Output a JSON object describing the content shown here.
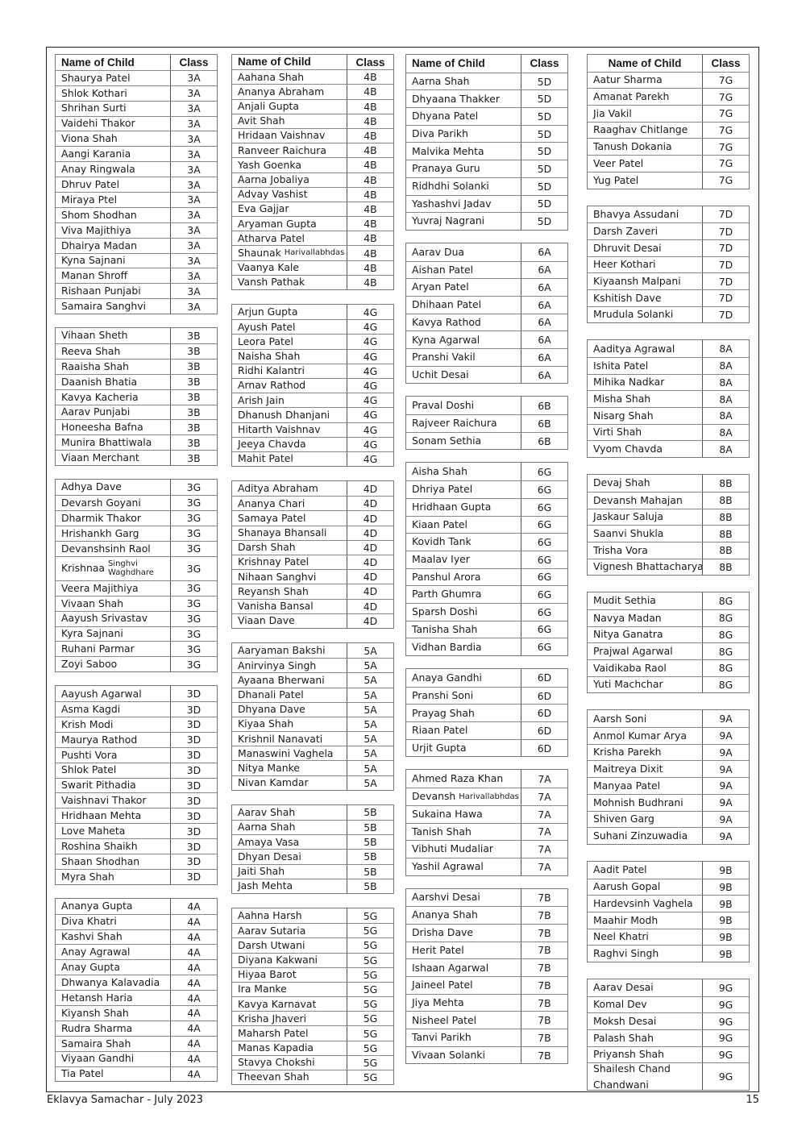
{
  "header": {
    "name": "Name of Child",
    "class": "Class"
  },
  "columns": [
    {
      "groups": [
        {
          "class": "3A",
          "names": [
            "Shaurya Patel",
            "Shlok Kothari",
            "Shrihan Surti",
            "Vaidehi Thakor",
            "Viona Shah",
            "Aangi Karania",
            "Anay Ringwala",
            "Dhruv Patel",
            "Miraya Ptel",
            "Shom Shodhan",
            "Viva Majithiya",
            "Dhairya Madan",
            "Kyna Sajnani",
            "Manan Shroff",
            "Rishaan Punjabi",
            "Samaira Sanghvi"
          ]
        },
        {
          "class": "3B",
          "names": [
            "Vihaan Sheth",
            "Reeva Shah",
            "Raaisha Shah",
            "Daanish Bhatia",
            "Kavya Kacheria",
            "Aarav Punjabi",
            "Honeesha Bafna",
            "Munira Bhattiwala",
            "Viaan Merchant"
          ]
        },
        {
          "class": "3G",
          "names": [
            "Adhya Dave",
            "Devarsh Goyani",
            "Dharmik Thakor",
            "Hrishankh Garg",
            "Devanshsinh Raol",
            "Krishnaa|Singhvi Waghdhare",
            "Veera Majithiya",
            "Vivaan Shah",
            "Aayush Srivastav",
            "Kyra Sajnani",
            "Ruhani Parmar",
            "Zoyi Saboo"
          ]
        },
        {
          "class": "3D",
          "names": [
            "Aayush Agarwal",
            "Asma Kagdi",
            "Krish Modi",
            "Maurya Rathod",
            "Pushti Vora",
            "Shlok Patel",
            "Swarit Pithadia",
            "Vaishnavi Thakor",
            "Hridhaan Mehta",
            "Love Maheta",
            "Roshina Shaikh",
            "Shaan Shodhan",
            "Myra Shah"
          ]
        },
        {
          "class": "4A",
          "names": [
            "Ananya Gupta",
            "Diva Khatri",
            "Kashvi Shah",
            "Anay Agrawal",
            "Anay Gupta",
            "Dhwanya Kalavadia",
            "Hetansh Haria",
            "Kiyansh Shah",
            "Rudra Sharma",
            "Samaira Shah",
            "Viyaan Gandhi",
            "Tia Patel"
          ]
        }
      ]
    },
    {
      "groups": [
        {
          "class": "4B",
          "names": [
            "Aahana Shah",
            "Ananya Abraham",
            "Anjali Gupta",
            "Avit Shah",
            "Hridaan Vaishnav",
            "Ranveer Raichura",
            "Yash Goenka",
            "Aarna Jobaliya",
            "Advay Vashist",
            "Eva Gajjar",
            "Aryaman Gupta",
            "Atharva Patel",
            "Shaunak|Harivallabhdas",
            "Vaanya Kale",
            "Vansh Pathak"
          ]
        },
        {
          "class": "4G",
          "names": [
            "Arjun Gupta",
            "Ayush Patel",
            "Leora Patel",
            "Naisha Shah",
            "Ridhi Kalantri",
            "Arnav Rathod",
            "Arish Jain",
            "Dhanush Dhanjani",
            "Hitarth Vaishnav",
            "Jeeya Chavda",
            "Mahit Patel"
          ]
        },
        {
          "class": "4D",
          "names": [
            "Aditya Abraham",
            "Ananya Chari",
            "Samaya Patel",
            "Shanaya Bhansali",
            "Darsh Shah",
            "Krishnay Patel",
            "Nihaan Sanghvi",
            "Reyansh Shah",
            "Vanisha Bansal",
            "Viaan Dave"
          ]
        },
        {
          "class": "5A",
          "names": [
            "Aaryaman Bakshi",
            "Anirvinya Singh",
            "Ayaana Bherwani",
            "Dhanali Patel",
            "Dhyana Dave",
            "Kiyaa Shah",
            "Krishnil Nanavati",
            "Manaswini Vaghela",
            "Nitya Manke",
            "Nivan Kamdar"
          ]
        },
        {
          "class": "5B",
          "names": [
            "Aarav Shah",
            "Aarna Shah",
            "Amaya Vasa",
            "Dhyan Desai",
            "Jaiti Shah",
            "Jash Mehta"
          ]
        },
        {
          "class": "5G",
          "names": [
            "Aahna Harsh",
            "Aarav Sutaria",
            "Darsh Utwani",
            "Diyana Kakwani",
            "Hiyaa Barot",
            "Ira Manke",
            "Kavya Karnavat",
            "Krisha Jhaveri",
            "Maharsh Patel",
            "Manas Kapadia",
            "Stavya Chokshi",
            "Theevan Shah"
          ]
        }
      ]
    },
    {
      "groups": [
        {
          "class": "5D",
          "names": [
            "Aarna Shah",
            "Dhyaana Thakker",
            "Dhyana Patel",
            "Diva Parikh",
            "Malvika Mehta",
            "Pranaya Guru",
            "Ridhdhi Solanki",
            "Yashashvi Jadav",
            "Yuvraj Nagrani"
          ]
        },
        {
          "class": "6A",
          "names": [
            "Aarav Dua",
            "Aishan Patel",
            "Aryan Patel",
            "Dhihaan Patel",
            "Kavya Rathod",
            "Kyna Agarwal",
            "Pranshi Vakil",
            "Uchit Desai"
          ]
        },
        {
          "class": "6B",
          "names": [
            "Praval Doshi",
            "Rajveer Raichura",
            "Sonam Sethia"
          ]
        },
        {
          "class": "6G",
          "names": [
            "Aisha Shah",
            "Dhriya Patel",
            "Hridhaan Gupta",
            "Kiaan Patel",
            "Kovidh Tank",
            "Maalav Iyer",
            "Panshul Arora",
            "Parth Ghumra",
            "Sparsh Doshi",
            "Tanisha Shah",
            "Vidhan Bardia"
          ]
        },
        {
          "class": "6D",
          "names": [
            "Anaya Gandhi",
            "Pranshi Soni",
            "Prayag Shah",
            "Riaan Patel",
            "Urjit Gupta"
          ]
        },
        {
          "class": "7A",
          "names": [
            "Ahmed Raza Khan",
            "Devansh|Harivallabhdas",
            "Sukaina Hawa",
            "Tanish Shah",
            "Vibhuti Mudaliar",
            "Yashil Agrawal"
          ]
        },
        {
          "class": "7B",
          "names": [
            "Aarshvi Desai",
            "Ananya Shah",
            "Drisha Dave",
            "Herit Patel",
            "Ishaan Agarwal",
            "Jaineel Patel",
            "Jiya Mehta",
            "Nisheel Patel",
            "Tanvi Parikh",
            "Vivaan Solanki"
          ]
        }
      ]
    },
    {
      "groups": [
        {
          "class": "7G",
          "names": [
            "Aatur Sharma",
            "Amanat Parekh",
            "Jia Vakil",
            "Raaghav Chitlange",
            "Tanush Dokania",
            "Veer Patel",
            "Yug Patel"
          ]
        },
        {
          "class": "7D",
          "names": [
            "Bhavya Assudani",
            "Darsh Zaveri",
            "Dhruvit Desai",
            "Heer Kothari",
            "Kiyaansh Malpani",
            "Kshitish Dave",
            "Mrudula Solanki"
          ]
        },
        {
          "class": "8A",
          "names": [
            "Aaditya Agrawal",
            "Ishita Patel",
            "Mihika Nadkar",
            "Misha Shah",
            "Nisarg Shah",
            "Virti Shah",
            "Vyom Chavda"
          ]
        },
        {
          "class": "8B",
          "names": [
            "Devaj Shah",
            "Devansh Mahajan",
            "Jaskaur Saluja",
            "Saanvi Shukla",
            "Trisha Vora",
            "Vignesh Bhattacharya"
          ]
        },
        {
          "class": "8G",
          "names": [
            "Mudit Sethia",
            "Navya Madan",
            "Nitya Ganatra",
            "Prajwal Agarwal",
            "Vaidikaba Raol",
            "Yuti Machchar"
          ]
        },
        {
          "class": "9A",
          "names": [
            "Aarsh Soni",
            "Anmol Kumar Arya",
            "Krisha Parekh",
            "Maitreya Dixit",
            "Manyaa Patel",
            "Mohnish Budhrani",
            "Shiven Garg",
            "Suhani Zinzuwadia"
          ]
        },
        {
          "class": "9B",
          "names": [
            "Aadit Patel",
            "Aarush Gopal",
            "Hardevsinh Vaghela",
            "Maahir Modh",
            "Neel Khatri",
            "Raghvi Singh"
          ]
        },
        {
          "class": "9G",
          "names": [
            "Aarav Desai",
            "Komal Dev",
            "Moksh Desai",
            "Palash Shah",
            "Priyansh Shah",
            "Shailesh Chand Chandwani"
          ]
        }
      ]
    }
  ],
  "footer": {
    "publication": "Eklavya Samachar - July 2023",
    "page_number": "15"
  }
}
